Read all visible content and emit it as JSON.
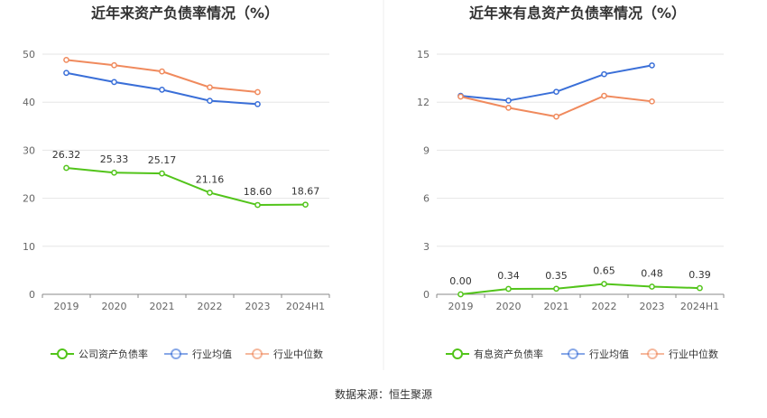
{
  "source_text": "数据来源：恒生聚源",
  "chart_data": [
    {
      "type": "line",
      "title": "近年来资产负债率情况（%）",
      "categories": [
        "2019",
        "2020",
        "2021",
        "2022",
        "2023",
        "2024H1"
      ],
      "ylim": [
        0,
        50
      ],
      "yticks": [
        0,
        10,
        20,
        30,
        40,
        50
      ],
      "grid": true,
      "legend_position": "bottom",
      "series": [
        {
          "name": "公司资产负债率",
          "color": "#52c41a",
          "values": [
            26.32,
            25.33,
            25.17,
            21.16,
            18.6,
            18.67
          ],
          "labels": [
            "26.32",
            "25.33",
            "25.17",
            "21.16",
            "18.60",
            "18.67"
          ]
        },
        {
          "name": "行业均值",
          "color": "#3a6fd8",
          "values": [
            46.1,
            44.2,
            42.6,
            40.3,
            39.6,
            null
          ]
        },
        {
          "name": "行业中位数",
          "color": "#f08a5d",
          "values": [
            48.8,
            47.7,
            46.4,
            43.1,
            42.1,
            null
          ]
        }
      ]
    },
    {
      "type": "line",
      "title": "近年来有息资产负债率情况（%）",
      "categories": [
        "2019",
        "2020",
        "2021",
        "2022",
        "2023",
        "2024H1"
      ],
      "ylim": [
        0,
        15
      ],
      "yticks": [
        0,
        3,
        6,
        9,
        12,
        15
      ],
      "grid": true,
      "legend_position": "bottom",
      "series": [
        {
          "name": "有息资产负债率",
          "color": "#52c41a",
          "values": [
            0.0,
            0.34,
            0.35,
            0.65,
            0.48,
            0.39
          ],
          "labels": [
            "0.00",
            "0.34",
            "0.35",
            "0.65",
            "0.48",
            "0.39"
          ]
        },
        {
          "name": "行业均值",
          "color": "#3a6fd8",
          "values": [
            12.4,
            12.1,
            12.65,
            13.75,
            14.3,
            null
          ]
        },
        {
          "name": "行业中位数",
          "color": "#f08a5d",
          "values": [
            12.35,
            11.65,
            11.1,
            12.4,
            12.05,
            null
          ]
        }
      ]
    }
  ]
}
